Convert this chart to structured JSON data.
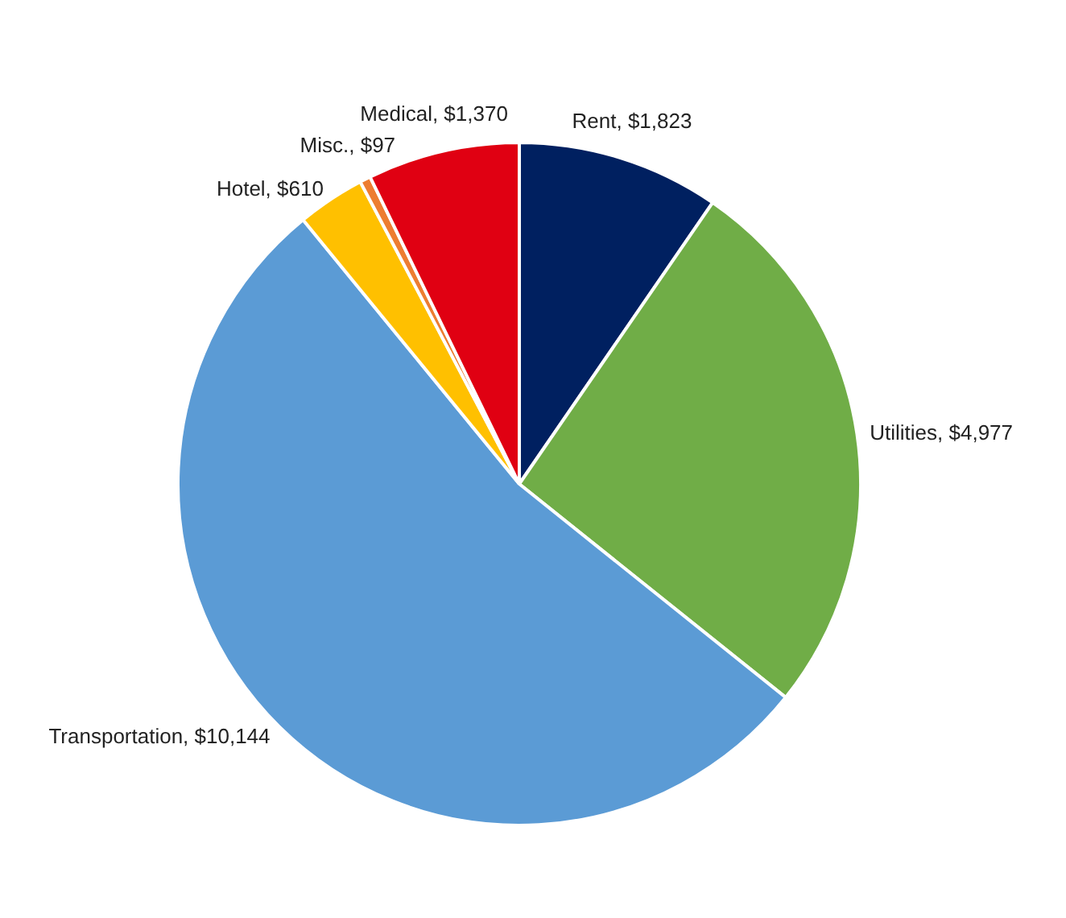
{
  "chart_data": {
    "type": "pie",
    "categories": [
      "Rent",
      "Utilities",
      "Transportation",
      "Hotel",
      "Misc.",
      "Medical"
    ],
    "values": [
      1823,
      4977,
      10144,
      610,
      97,
      1370
    ],
    "value_labels": [
      "$1,823",
      "$4,977",
      "$10,144",
      "$610",
      "$97",
      "$1,370"
    ],
    "colors": [
      "#002060",
      "#70ad47",
      "#5b9bd5",
      "#ffc000",
      "#ed7d31",
      "#e00012"
    ]
  }
}
